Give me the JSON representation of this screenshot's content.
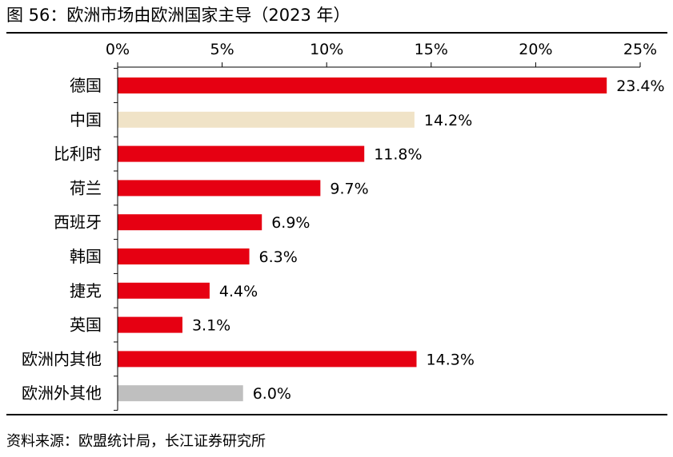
{
  "title": "图 56：欧洲市场由欧洲国家主导（2023 年）",
  "source": "资料来源：欧盟统计局，长江证券研究所",
  "chart_data": {
    "type": "bar",
    "orientation": "horizontal",
    "categories": [
      "德国",
      "中国",
      "比利时",
      "荷兰",
      "西班牙",
      "韩国",
      "捷克",
      "英国",
      "欧洲内其他",
      "欧洲外其他"
    ],
    "values": [
      23.4,
      14.2,
      11.8,
      9.7,
      6.9,
      6.3,
      4.4,
      3.1,
      14.3,
      6.0
    ],
    "value_labels": [
      "23.4%",
      "14.2%",
      "11.8%",
      "9.7%",
      "6.9%",
      "6.3%",
      "4.4%",
      "3.1%",
      "14.3%",
      "6.0%"
    ],
    "bar_colors": [
      "#e60012",
      "#f0e3c7",
      "#e60012",
      "#e60012",
      "#e60012",
      "#e60012",
      "#e60012",
      "#e60012",
      "#e60012",
      "#bfbfbf"
    ],
    "xlim": [
      0,
      25
    ],
    "x_ticks": [
      0,
      5,
      10,
      15,
      20,
      25
    ],
    "x_tick_labels": [
      "0%",
      "5%",
      "10%",
      "15%",
      "20%",
      "25%"
    ],
    "x_axis_position": "top",
    "grid": false,
    "legend": "none"
  }
}
